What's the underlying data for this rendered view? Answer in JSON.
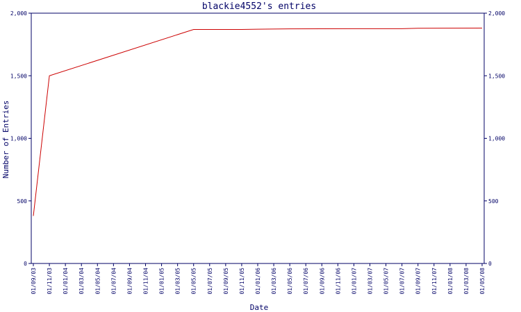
{
  "chart_data": {
    "type": "line",
    "title": "blackie4552's entries",
    "xlabel": "Date",
    "ylabel": "Number of Entries",
    "ylim": [
      0,
      2000
    ],
    "yticks": [
      0,
      500,
      1000,
      1500,
      2000
    ],
    "ytick_labels": [
      "0",
      "500",
      "1,000",
      "1,500",
      "2,000"
    ],
    "x_tick_labels": [
      "01/09/03",
      "01/11/03",
      "01/01/04",
      "01/03/04",
      "01/05/04",
      "01/07/04",
      "01/09/04",
      "01/11/04",
      "01/01/05",
      "01/03/05",
      "01/05/05",
      "01/07/05",
      "01/09/05",
      "01/11/05",
      "01/01/06",
      "01/03/06",
      "01/05/06",
      "01/07/06",
      "01/09/06",
      "01/11/06",
      "01/01/07",
      "01/03/07",
      "01/05/07",
      "01/07/07",
      "01/09/07",
      "01/11/07",
      "01/01/08",
      "01/03/08",
      "01/05/08"
    ],
    "line_color": "#cc0000",
    "axis_color": "#000066",
    "series": [
      {
        "points": [
          {
            "x": "01/09/03",
            "y": 380
          },
          {
            "x": "01/11/03",
            "y": 1500
          },
          {
            "x": "01/05/05",
            "y": 1870
          },
          {
            "x": "01/07/05",
            "y": 1870
          },
          {
            "x": "01/11/05",
            "y": 1870
          },
          {
            "x": "01/01/06",
            "y": 1872
          },
          {
            "x": "01/05/06",
            "y": 1875
          },
          {
            "x": "01/01/07",
            "y": 1876
          },
          {
            "x": "01/07/07",
            "y": 1876
          },
          {
            "x": "01/09/07",
            "y": 1880
          },
          {
            "x": "01/05/08",
            "y": 1881
          }
        ]
      }
    ]
  }
}
